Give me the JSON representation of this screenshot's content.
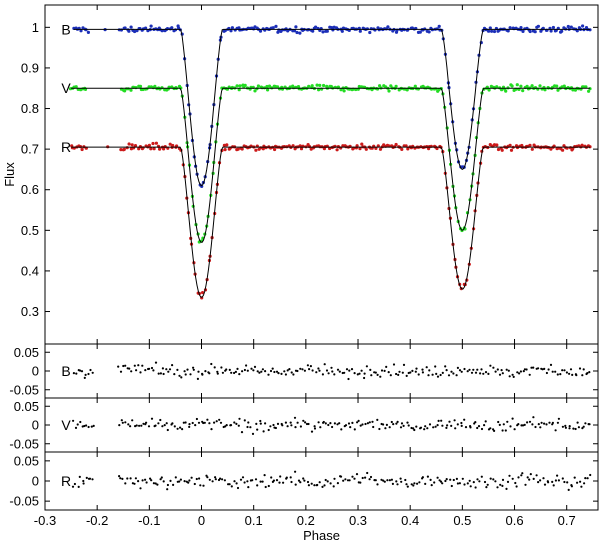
{
  "chart_data": {
    "type": "scatter",
    "xlabel": "Phase",
    "xlim": [
      -0.3,
      0.76
    ],
    "x_ticks": [
      "-0.3",
      "-0.2",
      "-0.1",
      "0",
      "0.1",
      "0.2",
      "0.3",
      "0.4",
      "0.5",
      "0.6",
      "0.7"
    ],
    "x_tick_values": [
      -0.3,
      -0.2,
      -0.1,
      0,
      0.1,
      0.2,
      0.3,
      0.4,
      0.5,
      0.6,
      0.7
    ],
    "main_panel": {
      "ylabel": "Flux",
      "ylim": [
        0.22,
        1.055
      ],
      "y_ticks": [
        "0.3",
        "0.4",
        "0.5",
        "0.6",
        "0.7",
        "0.8",
        "0.9",
        "1"
      ],
      "y_tick_values": [
        0.3,
        0.4,
        0.5,
        0.6,
        0.7,
        0.8,
        0.9,
        1.0
      ],
      "series": [
        {
          "band": "B",
          "color": "#1c2fb8",
          "baseline": 0.995,
          "primary_min": 0.61,
          "secondary_min": 0.65,
          "x_range": [
            -0.245,
            0.745
          ]
        },
        {
          "band": "V",
          "color": "#22dd22",
          "baseline": 0.85,
          "primary_min": 0.47,
          "secondary_min": 0.5,
          "x_range": [
            -0.25,
            0.745
          ]
        },
        {
          "band": "R",
          "color": "#cc1a1a",
          "baseline": 0.705,
          "primary_min": 0.335,
          "secondary_min": 0.355,
          "x_range": [
            -0.25,
            0.745
          ]
        }
      ],
      "eclipse_phases": [
        0.0,
        0.5
      ],
      "eclipse_width": 0.04
    },
    "residual_panels": [
      {
        "band": "B",
        "ylim": [
          -0.072,
          0.072
        ],
        "y_ticks": [
          "0.05",
          "0",
          "-0.05"
        ],
        "y_tick_values": [
          0.05,
          0,
          -0.05
        ]
      },
      {
        "band": "V",
        "ylim": [
          -0.072,
          0.072
        ],
        "y_ticks": [
          "0.05",
          "0",
          "-0.05"
        ],
        "y_tick_values": [
          0.05,
          0,
          -0.05
        ]
      },
      {
        "band": "R",
        "ylim": [
          -0.072,
          0.072
        ],
        "y_ticks": [
          "0.05",
          "0",
          "-0.05"
        ],
        "y_tick_values": [
          0.05,
          0,
          -0.05
        ]
      }
    ],
    "residual_scatter": 0.013,
    "residual_gap": [
      -0.15,
      -0.22
    ]
  }
}
